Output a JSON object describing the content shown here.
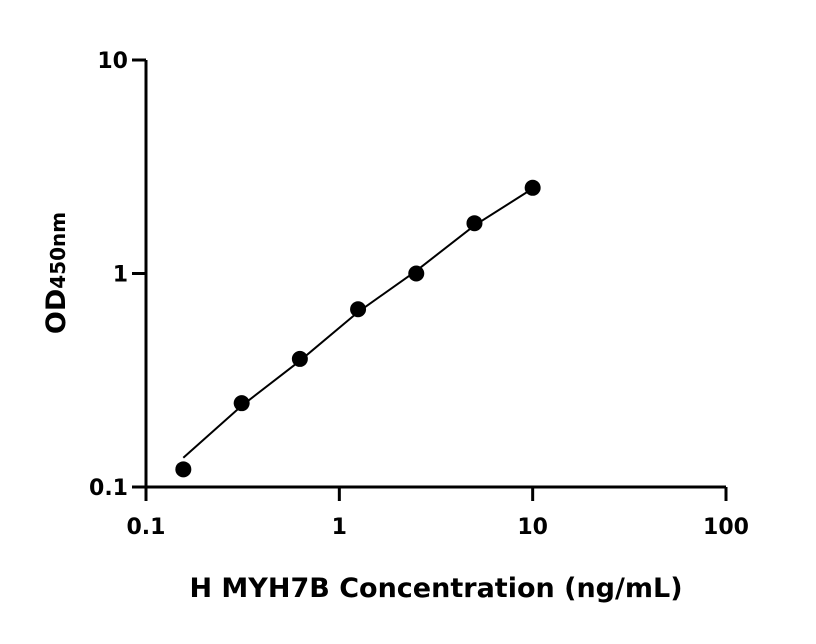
{
  "chart_data": {
    "type": "scatter",
    "title": "",
    "xlabel": "H MYH7B Concentration (ng/mL)",
    "ylabel_main": "OD",
    "ylabel_sub": "450nm",
    "x_scale": "log",
    "y_scale": "log",
    "xlim": [
      0.1,
      100
    ],
    "ylim": [
      0.1,
      10
    ],
    "x_ticks": [
      "0.1",
      "1",
      "10",
      "100"
    ],
    "y_ticks": [
      "0.1",
      "1",
      "10"
    ],
    "grid": false,
    "series": [
      {
        "x": [
          0.156,
          0.3125,
          0.625,
          1.25,
          2.5,
          5,
          10
        ],
        "y": [
          0.121,
          0.247,
          0.398,
          0.68,
          1.0,
          1.72,
          2.52
        ]
      }
    ],
    "fit_curve": {
      "x": [
        0.156,
        0.3125,
        0.625,
        1.25,
        2.5,
        5,
        10
      ],
      "y": [
        0.137,
        0.24,
        0.39,
        0.66,
        1.03,
        1.68,
        2.5
      ]
    },
    "colors": {
      "marker": "#000000",
      "line": "#000000"
    }
  }
}
